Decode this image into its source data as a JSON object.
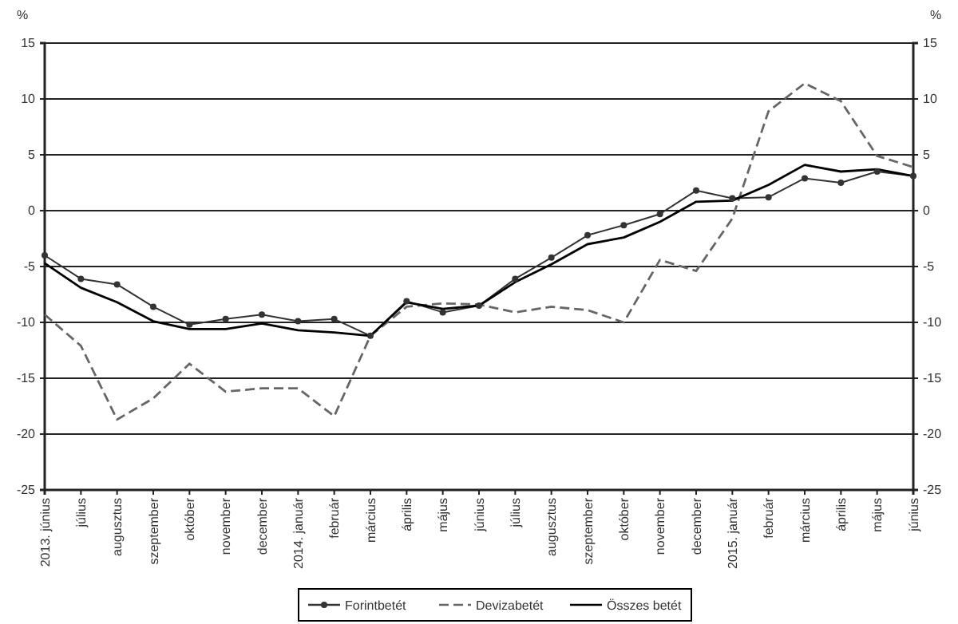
{
  "chart_data": {
    "type": "line",
    "ylabel": "%",
    "y2label": "%",
    "categories": [
      "2013. június",
      "július",
      "augusztus",
      "szeptember",
      "október",
      "november",
      "december",
      "2014. január",
      "február",
      "március",
      "április",
      "május",
      "június",
      "július",
      "augusztus",
      "szeptember",
      "október",
      "november",
      "december",
      "2015. január",
      "február",
      "március",
      "április",
      "május",
      "június"
    ],
    "series": [
      {
        "name": "Forintbetét",
        "color": "#333333",
        "marker": "circle",
        "line_style": "solid",
        "values": [
          -4.0,
          -6.1,
          -6.6,
          -8.6,
          -10.2,
          -9.7,
          -9.3,
          -9.9,
          -9.7,
          -11.2,
          -8.1,
          -9.1,
          -8.5,
          -6.1,
          -4.2,
          -2.2,
          -1.3,
          -0.3,
          1.8,
          1.1,
          1.2,
          2.9,
          2.5,
          3.5,
          3.1
        ]
      },
      {
        "name": "Devizabetét",
        "color": "#666666",
        "marker": "none",
        "line_style": "dashed",
        "values": [
          -9.3,
          -12.1,
          -18.7,
          -16.8,
          -13.7,
          -16.2,
          -15.9,
          -15.9,
          -18.4,
          -11.2,
          -8.6,
          -8.3,
          -8.4,
          -9.1,
          -8.6,
          -8.9,
          -10.0,
          -4.4,
          -5.4,
          -0.7,
          8.9,
          11.4,
          9.8,
          4.9,
          3.9
        ]
      },
      {
        "name": "Összes betét",
        "color": "#000000",
        "marker": "none",
        "line_style": "solid",
        "values": [
          -4.7,
          -6.9,
          -8.2,
          -9.9,
          -10.6,
          -10.6,
          -10.1,
          -10.7,
          -10.9,
          -11.2,
          -8.2,
          -8.8,
          -8.5,
          -6.4,
          -4.8,
          -3.0,
          -2.4,
          -1.0,
          0.8,
          0.9,
          2.3,
          4.1,
          3.5,
          3.7,
          3.1
        ]
      }
    ],
    "ylim": [
      -25,
      15
    ],
    "yticks": [
      -25,
      -20,
      -15,
      -10,
      -5,
      0,
      5,
      10,
      15
    ],
    "y2lim": [
      -25,
      15
    ],
    "y2ticks": [
      -25,
      -20,
      -15,
      -10,
      -5,
      0,
      5,
      10,
      15
    ],
    "grid": "y",
    "legend": "bottom"
  }
}
